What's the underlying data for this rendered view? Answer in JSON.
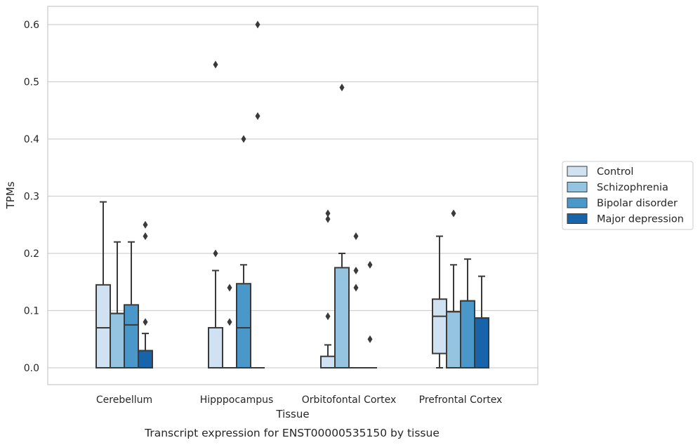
{
  "chart_data": {
    "type": "box",
    "title": "",
    "caption": "Transcript expression for ENST00000535150 by tissue",
    "xlabel": "Tissue",
    "ylabel": "TPMs",
    "ylim": [
      -0.03,
      0.63
    ],
    "yticks": [
      0.0,
      0.1,
      0.2,
      0.3,
      0.4,
      0.5,
      0.6
    ],
    "ytick_labels": [
      "0.0",
      "0.1",
      "0.2",
      "0.3",
      "0.4",
      "0.5",
      "0.6"
    ],
    "grid": "horizontal",
    "legend_position": "right",
    "categories": [
      "Cerebellum",
      "Hipppocampus",
      "Orbitofontal Cortex",
      "Prefrontal Cortex"
    ],
    "series": [
      {
        "name": "Control",
        "color": "#d0e1f2",
        "boxes": [
          {
            "q1": 0.0,
            "median": 0.07,
            "q3": 0.145,
            "whislo": 0.0,
            "whishi": 0.29,
            "fliers": []
          },
          {
            "q1": 0.0,
            "median": 0.0,
            "q3": 0.07,
            "whislo": 0.0,
            "whishi": 0.17,
            "fliers": [
              0.2,
              0.53
            ]
          },
          {
            "q1": 0.0,
            "median": 0.0,
            "q3": 0.02,
            "whislo": 0.0,
            "whishi": 0.04,
            "fliers": [
              0.09,
              0.26,
              0.27
            ]
          },
          {
            "q1": 0.025,
            "median": 0.09,
            "q3": 0.12,
            "whislo": 0.0,
            "whishi": 0.23,
            "fliers": []
          }
        ]
      },
      {
        "name": "Schizophrenia",
        "color": "#94c4df",
        "boxes": [
          {
            "q1": 0.0,
            "median": 0.095,
            "q3": 0.095,
            "whislo": 0.0,
            "whishi": 0.22,
            "fliers": []
          },
          {
            "q1": 0.0,
            "median": 0.0,
            "q3": 0.0,
            "whislo": 0.0,
            "whishi": 0.0,
            "fliers": [
              0.08,
              0.14
            ]
          },
          {
            "q1": 0.0,
            "median": 0.0,
            "q3": 0.175,
            "whislo": 0.0,
            "whishi": 0.2,
            "fliers": [
              0.49
            ]
          },
          {
            "q1": 0.0,
            "median": 0.098,
            "q3": 0.098,
            "whislo": 0.0,
            "whishi": 0.18,
            "fliers": [
              0.27
            ]
          }
        ]
      },
      {
        "name": "Bipolar disorder",
        "color": "#4a98c9",
        "boxes": [
          {
            "q1": 0.0,
            "median": 0.075,
            "q3": 0.11,
            "whislo": 0.0,
            "whishi": 0.22,
            "fliers": []
          },
          {
            "q1": 0.0,
            "median": 0.07,
            "q3": 0.147,
            "whislo": 0.0,
            "whishi": 0.18,
            "fliers": [
              0.4
            ]
          },
          {
            "q1": 0.0,
            "median": 0.0,
            "q3": 0.0,
            "whislo": 0.0,
            "whishi": 0.0,
            "fliers": [
              0.14,
              0.17,
              0.23
            ]
          },
          {
            "q1": 0.0,
            "median": 0.117,
            "q3": 0.117,
            "whislo": 0.0,
            "whishi": 0.19,
            "fliers": []
          }
        ]
      },
      {
        "name": "Major depression",
        "color": "#1764ab",
        "boxes": [
          {
            "q1": 0.0,
            "median": 0.03,
            "q3": 0.03,
            "whislo": 0.0,
            "whishi": 0.06,
            "fliers": [
              0.08,
              0.23,
              0.25
            ]
          },
          {
            "q1": 0.0,
            "median": 0.0,
            "q3": 0.0,
            "whislo": 0.0,
            "whishi": 0.0,
            "fliers": [
              0.44,
              0.6
            ]
          },
          {
            "q1": 0.0,
            "median": 0.0,
            "q3": 0.0,
            "whislo": 0.0,
            "whishi": 0.0,
            "fliers": [
              0.05,
              0.18
            ]
          },
          {
            "q1": 0.0,
            "median": 0.087,
            "q3": 0.087,
            "whislo": 0.0,
            "whishi": 0.16,
            "fliers": []
          }
        ]
      }
    ]
  }
}
